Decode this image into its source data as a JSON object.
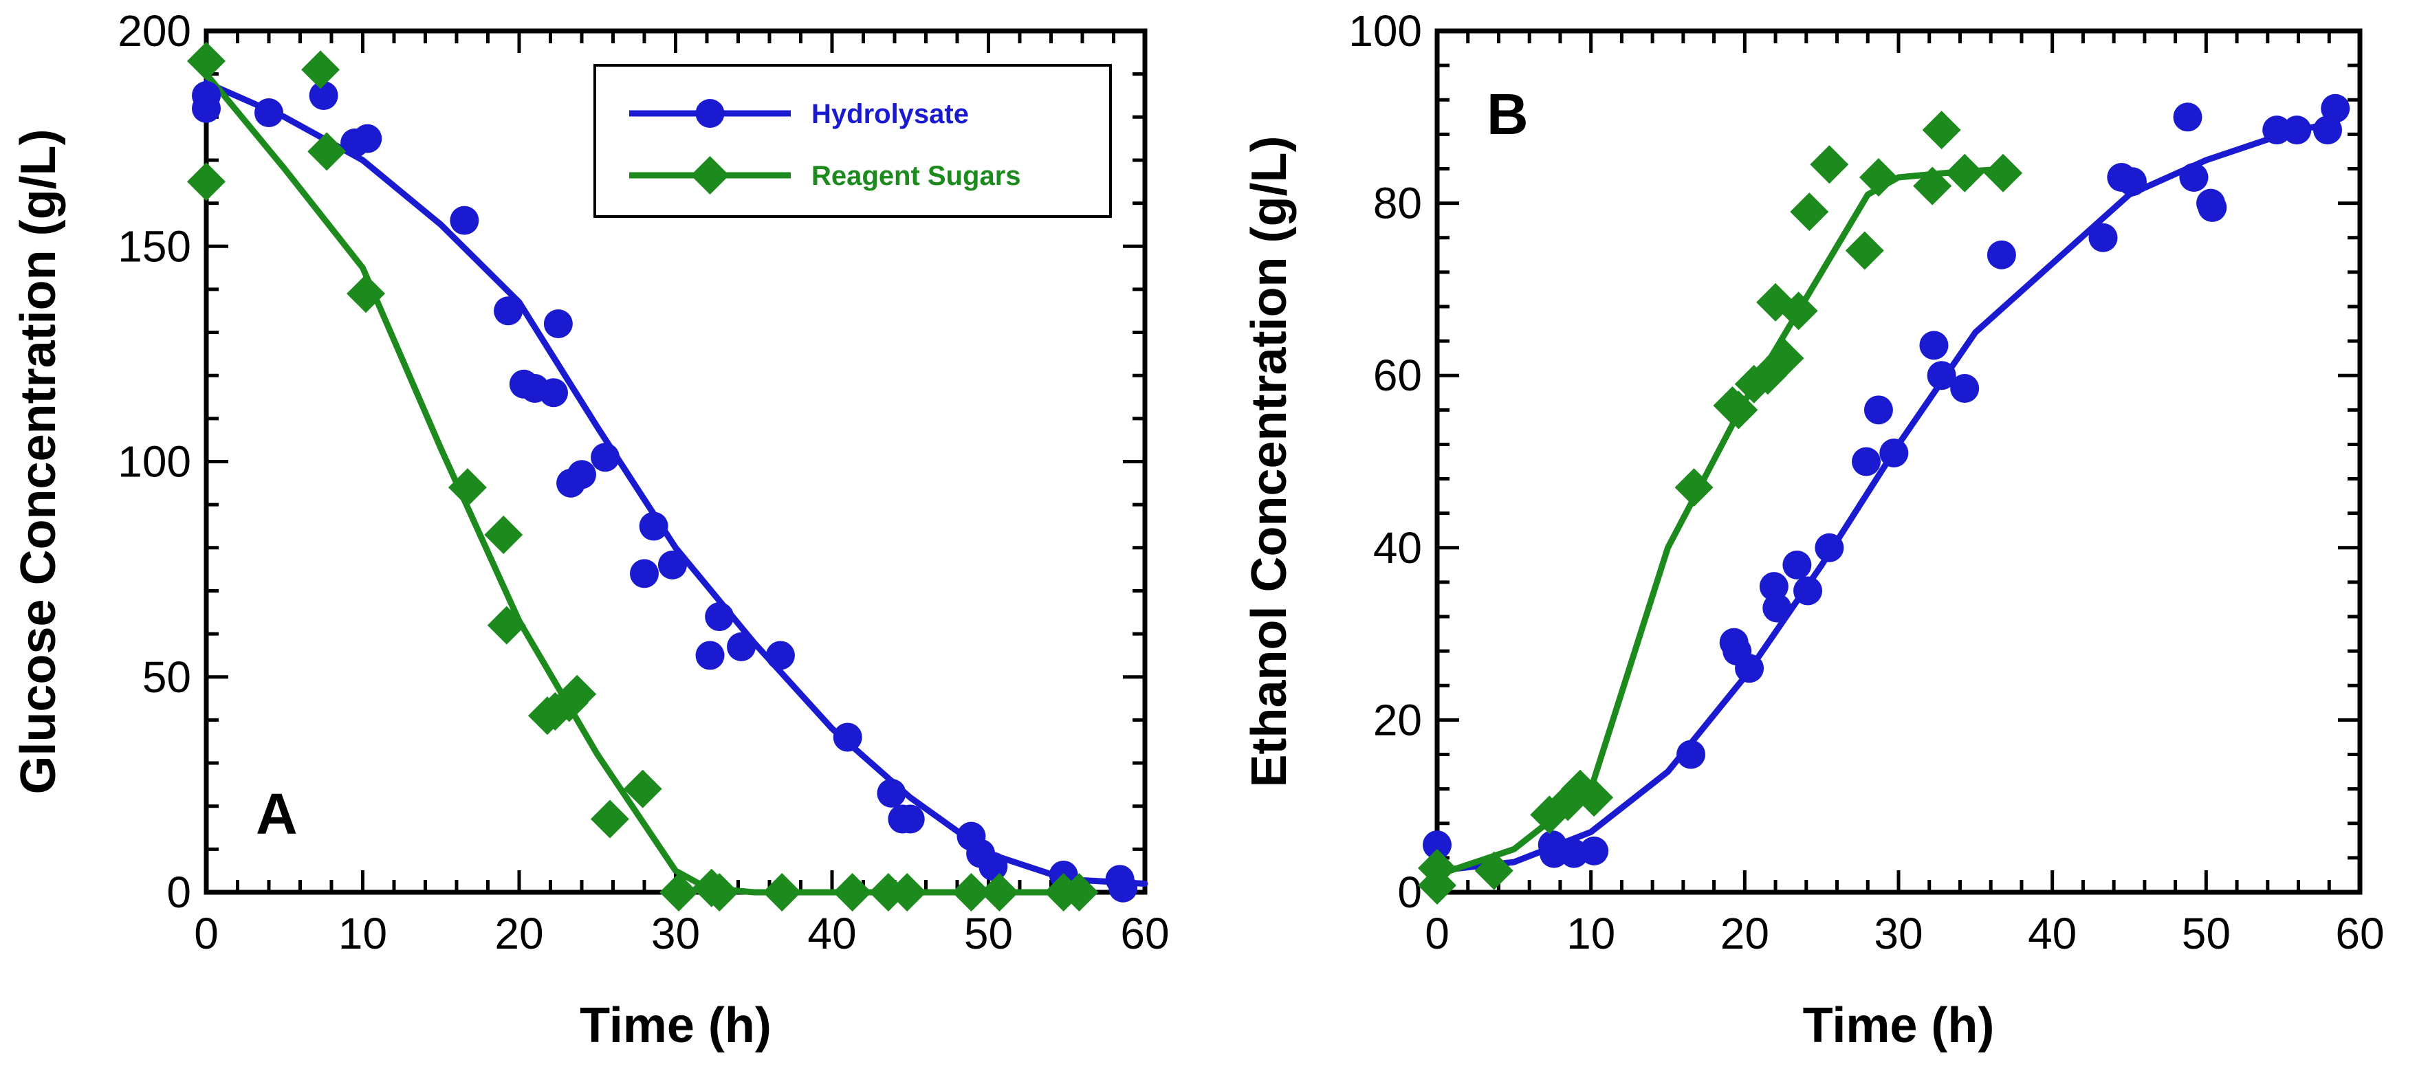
{
  "colors": {
    "hydrolysate": "#1a1ad0",
    "reagent": "#1d8a1d",
    "axis": "#000000"
  },
  "chart_data": [
    {
      "type": "scatter",
      "panel_label": "A",
      "xlabel": "Time (h)",
      "ylabel": "Glucose Concentration (g/L)",
      "xlim": [
        0,
        60
      ],
      "ylim": [
        0,
        200
      ],
      "xticks": [
        0,
        10,
        20,
        30,
        40,
        50,
        60
      ],
      "yticks": [
        0,
        50,
        100,
        150,
        200
      ],
      "grid": false,
      "legend": {
        "placement": "top-right",
        "entries": [
          "Hydrolysate",
          "Reagent Sugars"
        ]
      },
      "series": [
        {
          "name": "Hydrolysate",
          "color_key": "hydrolysate",
          "marker": "circle",
          "points": [
            [
              0,
              185
            ],
            [
              0,
              182
            ],
            [
              4,
              181
            ],
            [
              7.5,
              185
            ],
            [
              9.5,
              174
            ],
            [
              10.3,
              175
            ],
            [
              16.5,
              156
            ],
            [
              19.3,
              135
            ],
            [
              20.3,
              118
            ],
            [
              21,
              117
            ],
            [
              22.2,
              116
            ],
            [
              22.5,
              132
            ],
            [
              23.3,
              95
            ],
            [
              24,
              97
            ],
            [
              25.5,
              101
            ],
            [
              28,
              74
            ],
            [
              28.6,
              85
            ],
            [
              29.8,
              76
            ],
            [
              32.2,
              55
            ],
            [
              32.8,
              64
            ],
            [
              34.2,
              57
            ],
            [
              36.7,
              55
            ],
            [
              41,
              36
            ],
            [
              43.8,
              23
            ],
            [
              44.5,
              17
            ],
            [
              45,
              17
            ],
            [
              48.9,
              13
            ],
            [
              49.5,
              9
            ],
            [
              50.3,
              6
            ],
            [
              54.8,
              4
            ],
            [
              58.4,
              3
            ],
            [
              58.6,
              1
            ]
          ],
          "fit": [
            [
              0,
              188
            ],
            [
              5,
              180
            ],
            [
              10,
              170
            ],
            [
              15,
              155
            ],
            [
              20,
              137
            ],
            [
              25,
              108
            ],
            [
              30,
              80
            ],
            [
              35,
              58
            ],
            [
              40,
              38
            ],
            [
              45,
              22
            ],
            [
              50,
              9
            ],
            [
              55,
              3
            ],
            [
              60,
              2
            ]
          ]
        },
        {
          "name": "Reagent Sugars",
          "color_key": "reagent",
          "marker": "diamond",
          "points": [
            [
              0,
              193
            ],
            [
              0,
              165
            ],
            [
              7.3,
              191
            ],
            [
              7.7,
              172
            ],
            [
              10.2,
              139
            ],
            [
              16.7,
              94
            ],
            [
              19,
              83
            ],
            [
              19.2,
              62
            ],
            [
              21.8,
              41
            ],
            [
              22.3,
              42
            ],
            [
              23.2,
              44
            ],
            [
              23.7,
              46
            ],
            [
              25.8,
              17
            ],
            [
              27.9,
              24
            ],
            [
              30.2,
              0
            ],
            [
              32.3,
              1
            ],
            [
              32.8,
              0
            ],
            [
              36.8,
              0
            ],
            [
              41.3,
              0
            ],
            [
              43.6,
              0
            ],
            [
              44.8,
              0
            ],
            [
              48.9,
              0
            ],
            [
              50.7,
              0
            ],
            [
              54.8,
              0
            ],
            [
              55.8,
              0
            ]
          ],
          "fit": [
            [
              0,
              190
            ],
            [
              5,
              168
            ],
            [
              10,
              145
            ],
            [
              15,
              103
            ],
            [
              20,
              63
            ],
            [
              25,
              32
            ],
            [
              30,
              5
            ],
            [
              32,
              1
            ],
            [
              35,
              0
            ],
            [
              40,
              0
            ],
            [
              50,
              0
            ],
            [
              56,
              0
            ]
          ]
        }
      ]
    },
    {
      "type": "scatter",
      "panel_label": "B",
      "xlabel": "Time (h)",
      "ylabel": "Ethanol Concentration (g/L)",
      "xlim": [
        0,
        60
      ],
      "ylim": [
        0,
        100
      ],
      "xticks": [
        0,
        10,
        20,
        30,
        40,
        50,
        60
      ],
      "yticks": [
        0,
        20,
        40,
        60,
        80,
        100
      ],
      "grid": false,
      "legend": {
        "placement": "none",
        "entries": []
      },
      "series": [
        {
          "name": "Hydrolysate",
          "color_key": "hydrolysate",
          "marker": "circle",
          "points": [
            [
              0,
              5.5
            ],
            [
              7.5,
              5.5
            ],
            [
              7.6,
              4.5
            ],
            [
              8.9,
              4.5
            ],
            [
              10.2,
              4.8
            ],
            [
              16.5,
              16
            ],
            [
              19.3,
              29
            ],
            [
              19.5,
              28
            ],
            [
              20.3,
              26
            ],
            [
              21.9,
              35.5
            ],
            [
              22.1,
              33
            ],
            [
              23.4,
              38
            ],
            [
              24.1,
              35
            ],
            [
              25.5,
              40
            ],
            [
              27.9,
              50
            ],
            [
              28.7,
              56
            ],
            [
              29.7,
              51
            ],
            [
              32.3,
              63.5
            ],
            [
              32.8,
              60
            ],
            [
              34.3,
              58.5
            ],
            [
              36.7,
              74
            ],
            [
              43.3,
              76
            ],
            [
              44.5,
              83
            ],
            [
              45.2,
              82.5
            ],
            [
              48.8,
              90
            ],
            [
              49.2,
              83
            ],
            [
              50.3,
              80
            ],
            [
              50.4,
              79.5
            ],
            [
              54.6,
              88.5
            ],
            [
              55.9,
              88.5
            ],
            [
              57.9,
              88.5
            ],
            [
              58.4,
              91
            ]
          ],
          "fit": [
            [
              0,
              2.5
            ],
            [
              5,
              3.5
            ],
            [
              10,
              7
            ],
            [
              15,
              14
            ],
            [
              20,
              25
            ],
            [
              25,
              38
            ],
            [
              30,
              52
            ],
            [
              35,
              65
            ],
            [
              40,
              73
            ],
            [
              45,
              81
            ],
            [
              50,
              85
            ],
            [
              55,
              88
            ],
            [
              58.5,
              89.5
            ]
          ]
        },
        {
          "name": "Reagent Sugars",
          "color_key": "reagent",
          "marker": "diamond",
          "points": [
            [
              0,
              0.8
            ],
            [
              0,
              2.8
            ],
            [
              3.7,
              2.5
            ],
            [
              7.3,
              9
            ],
            [
              8.5,
              10.5
            ],
            [
              9.3,
              12
            ],
            [
              10.2,
              11
            ],
            [
              16.7,
              47
            ],
            [
              19.2,
              56.5
            ],
            [
              19.6,
              56
            ],
            [
              20.6,
              59
            ],
            [
              21.5,
              60
            ],
            [
              22,
              68.5
            ],
            [
              22.6,
              62
            ],
            [
              23.5,
              67.5
            ],
            [
              24.2,
              79
            ],
            [
              25.5,
              84.5
            ],
            [
              27.8,
              74.5
            ],
            [
              28.7,
              83
            ],
            [
              32.2,
              82
            ],
            [
              32.8,
              88.5
            ],
            [
              34.3,
              83.5
            ],
            [
              36.8,
              83.5
            ]
          ],
          "fit": [
            [
              0,
              2
            ],
            [
              5,
              5
            ],
            [
              10,
              12
            ],
            [
              15,
              40
            ],
            [
              20,
              57
            ],
            [
              25,
              72
            ],
            [
              28,
              81
            ],
            [
              30,
              83
            ],
            [
              33,
              83.5
            ],
            [
              37,
              84
            ]
          ]
        }
      ]
    }
  ]
}
